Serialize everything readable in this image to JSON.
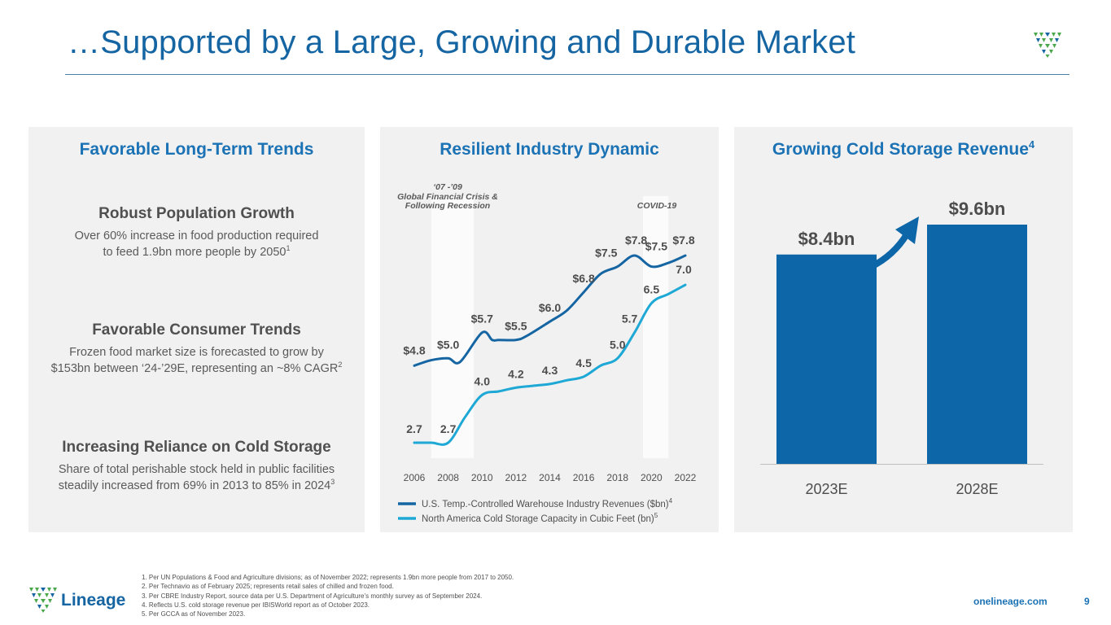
{
  "title": "…Supported by a Large, Growing and Durable Market",
  "panels": {
    "trends": {
      "heading": "Favorable Long-Term Trends",
      "items": [
        {
          "title": "Robust Population Growth",
          "line1": "Over 60% increase in food production required",
          "line2": "to feed 1.9bn more people by 2050",
          "ref": "1"
        },
        {
          "title": "Favorable Consumer Trends",
          "line1": "Frozen food market size is forecasted to grow by",
          "line2": "$153bn between ‘24-’29E, representing an ~8% CAGR",
          "ref": "2"
        },
        {
          "title": "Increasing Reliance on Cold Storage",
          "line1": "Share of total perishable stock held in public facilities",
          "line2": "steadily increased from 69% in 2013 to 85% in 2024",
          "ref": "3"
        }
      ]
    },
    "industry": {
      "heading": "Resilient Industry Dynamic",
      "annotations": {
        "gfc_line1": "‘07 -’09",
        "gfc_line2": "Global Financial Crisis &",
        "gfc_line3": "Following Recession",
        "covid": "COVID-19"
      }
    },
    "revenue": {
      "heading": "Growing Cold Storage Revenue",
      "heading_ref": "4"
    }
  },
  "chart_data": [
    {
      "type": "line",
      "title": "Resilient Industry Dynamic",
      "x_ticks": [
        "2006",
        "2008",
        "2010",
        "2012",
        "2014",
        "2016",
        "2018",
        "2020",
        "2022"
      ],
      "shaded_periods": [
        {
          "label": "‘07 -’09 Global Financial Crisis & Following Recession",
          "from": 2007,
          "to": 2009.5
        },
        {
          "label": "COVID-19",
          "from": 2019.5,
          "to": 2021
        }
      ],
      "series": [
        {
          "name": "U.S. Temp.-Controlled Warehouse Industry Revenues ($bn)",
          "legend_ref": "4",
          "color": "#1565a3",
          "x": [
            2006,
            2007,
            2008,
            2008.7,
            2010,
            2010.6,
            2011,
            2012,
            2012.6,
            2014,
            2015,
            2016,
            2017,
            2018,
            2019,
            2020,
            2021,
            2022
          ],
          "y": [
            4.8,
            4.95,
            5.0,
            4.9,
            5.7,
            5.5,
            5.5,
            5.5,
            5.6,
            6.0,
            6.3,
            6.8,
            7.3,
            7.5,
            7.8,
            7.5,
            7.6,
            7.8
          ],
          "labels": [
            {
              "x": 2006,
              "y": 4.8,
              "text": "$4.8"
            },
            {
              "x": 2008,
              "y": 5.0,
              "text": "$5.0"
            },
            {
              "x": 2010,
              "y": 5.7,
              "text": "$5.7"
            },
            {
              "x": 2012,
              "y": 5.5,
              "text": "$5.5"
            },
            {
              "x": 2014,
              "y": 6.0,
              "text": "$6.0"
            },
            {
              "x": 2016,
              "y": 6.8,
              "text": "$6.8"
            },
            {
              "x": 2018,
              "y": 7.5,
              "text": "$7.5"
            },
            {
              "x": 2019,
              "y": 7.8,
              "text": "$7.8"
            },
            {
              "x": 2020,
              "y": 7.5,
              "text": "$7.5"
            },
            {
              "x": 2022,
              "y": 7.8,
              "text": "$7.8"
            }
          ]
        },
        {
          "name": "North America Cold Storage Capacity in Cubic Feet (bn)",
          "legend_ref": "5",
          "color": "#1ea8d6",
          "x": [
            2006,
            2007,
            2008,
            2009,
            2010,
            2011,
            2012,
            2013,
            2014,
            2015,
            2016,
            2017,
            2018,
            2019,
            2020,
            2021,
            2022
          ],
          "y": [
            2.7,
            2.7,
            2.7,
            3.4,
            4.0,
            4.1,
            4.2,
            4.25,
            4.3,
            4.4,
            4.5,
            4.8,
            5.0,
            5.7,
            6.5,
            6.75,
            7.0
          ],
          "labels": [
            {
              "x": 2006,
              "y": 2.7,
              "text": "2.7"
            },
            {
              "x": 2008,
              "y": 2.7,
              "text": "2.7"
            },
            {
              "x": 2010,
              "y": 4.0,
              "text": "4.0"
            },
            {
              "x": 2012,
              "y": 4.2,
              "text": "4.2"
            },
            {
              "x": 2014,
              "y": 4.3,
              "text": "4.3"
            },
            {
              "x": 2016,
              "y": 4.5,
              "text": "4.5"
            },
            {
              "x": 2018,
              "y": 5.0,
              "text": "5.0"
            },
            {
              "x": 2019,
              "y": 5.7,
              "text": "5.7"
            },
            {
              "x": 2020,
              "y": 6.5,
              "text": "6.5"
            },
            {
              "x": 2022,
              "y": 7.0,
              "text": "7.0"
            }
          ]
        }
      ]
    },
    {
      "type": "bar",
      "title": "Growing Cold Storage Revenue",
      "categories": [
        "2023E",
        "2028E"
      ],
      "values": [
        8.4,
        9.6
      ],
      "value_labels": [
        "$8.4bn",
        "$9.6bn"
      ],
      "color": "#0d66a8",
      "ylim": [
        0,
        9.6
      ],
      "growth_arrow": true
    }
  ],
  "footnotes": [
    "1. Per UN Populations & Food and Agriculture divisions; as of November 2022; represents 1.9bn more people from 2017 to 2050.",
    "2. Per Technavio as of February 2025; represents retail sales of chilled and frozen food.",
    "3. Per CBRE Industry Report, source data per U.S. Department of Agriculture’s monthly survey as of September 2024.",
    "4. Reflects U.S. cold storage revenue per IBISWorld report as of October 2023.",
    "5. Per GCCA as of November 2023."
  ],
  "footer": {
    "logo_text": "Lineage",
    "website": "onelineage.com",
    "page_number": "9"
  },
  "colors": {
    "brand_blue": "#1565a3",
    "heading_blue": "#1b72b5",
    "light_blue": "#1ea8d6",
    "logo_green": "#4aa84a",
    "panel_bg": "#f1f1f1"
  }
}
